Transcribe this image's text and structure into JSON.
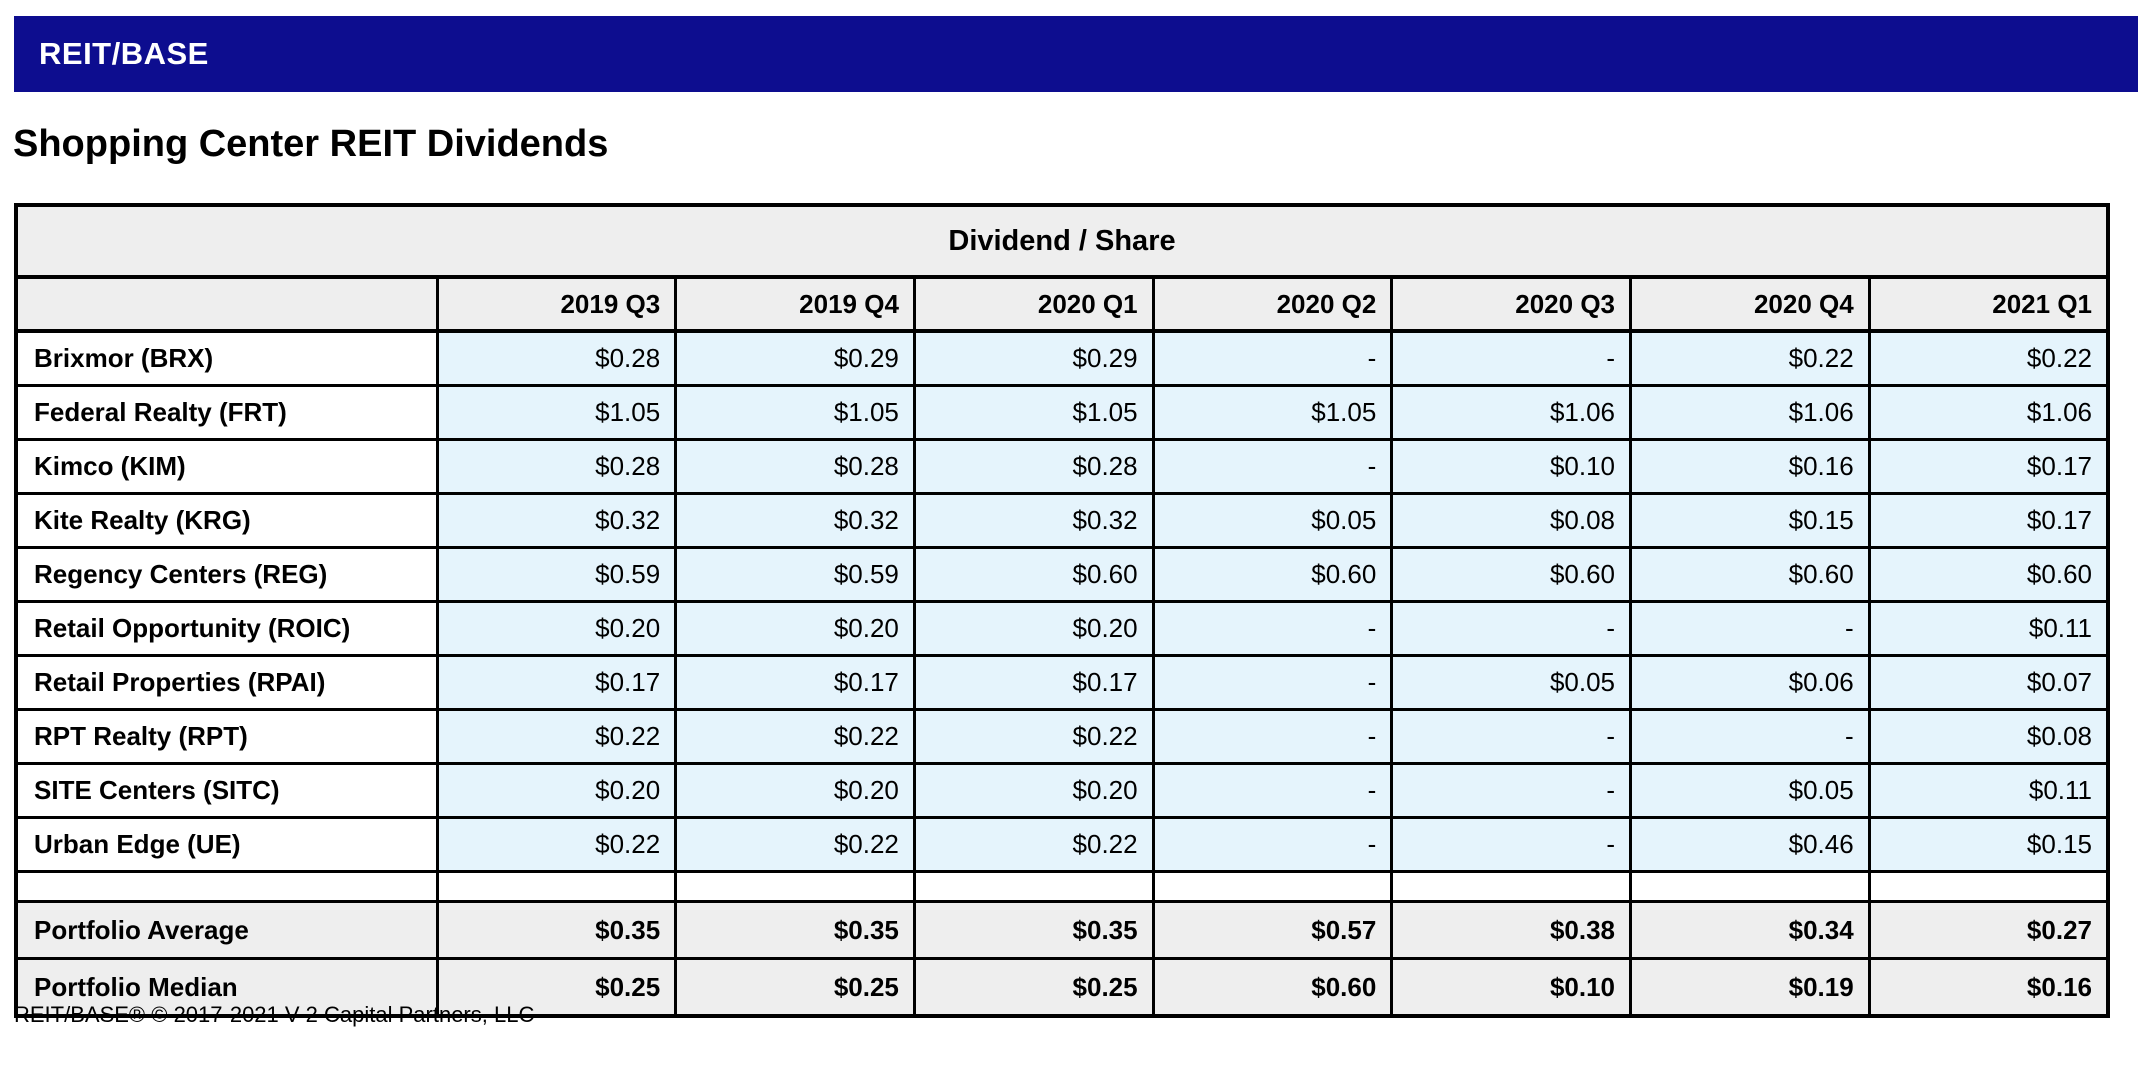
{
  "app": {
    "brand": "REIT/BASE"
  },
  "page": {
    "title": "Shopping Center REIT Dividends",
    "footer": "REIT/BASE® © 2017-2021 V-2 Capital Partners, LLC"
  },
  "colors": {
    "banner_bg": "#0d0d8f",
    "banner_text": "#ffffff",
    "header_bg": "#eeeeee",
    "value_cell_bg": "#e5f4fc",
    "summary_bg": "#eeeeee",
    "border": "#000000"
  },
  "table": {
    "title": "Dividend / Share",
    "columns": [
      "2019 Q3",
      "2019 Q4",
      "2020 Q1",
      "2020 Q2",
      "2020 Q3",
      "2020 Q4",
      "2021 Q1"
    ],
    "rows": [
      {
        "label": "Brixmor (BRX)",
        "values": [
          "$0.28",
          "$0.29",
          "$0.29",
          "-",
          "-",
          "$0.22",
          "$0.22"
        ]
      },
      {
        "label": "Federal Realty (FRT)",
        "values": [
          "$1.05",
          "$1.05",
          "$1.05",
          "$1.05",
          "$1.06",
          "$1.06",
          "$1.06"
        ]
      },
      {
        "label": "Kimco (KIM)",
        "values": [
          "$0.28",
          "$0.28",
          "$0.28",
          "-",
          "$0.10",
          "$0.16",
          "$0.17"
        ]
      },
      {
        "label": "Kite Realty (KRG)",
        "values": [
          "$0.32",
          "$0.32",
          "$0.32",
          "$0.05",
          "$0.08",
          "$0.15",
          "$0.17"
        ]
      },
      {
        "label": "Regency Centers (REG)",
        "values": [
          "$0.59",
          "$0.59",
          "$0.60",
          "$0.60",
          "$0.60",
          "$0.60",
          "$0.60"
        ]
      },
      {
        "label": "Retail Opportunity (ROIC)",
        "values": [
          "$0.20",
          "$0.20",
          "$0.20",
          "-",
          "-",
          "-",
          "$0.11"
        ]
      },
      {
        "label": "Retail Properties (RPAI)",
        "values": [
          "$0.17",
          "$0.17",
          "$0.17",
          "-",
          "$0.05",
          "$0.06",
          "$0.07"
        ]
      },
      {
        "label": "RPT Realty (RPT)",
        "values": [
          "$0.22",
          "$0.22",
          "$0.22",
          "-",
          "-",
          "-",
          "$0.08"
        ]
      },
      {
        "label": "SITE Centers (SITC)",
        "values": [
          "$0.20",
          "$0.20",
          "$0.20",
          "-",
          "-",
          "$0.05",
          "$0.11"
        ]
      },
      {
        "label": "Urban Edge (UE)",
        "values": [
          "$0.22",
          "$0.22",
          "$0.22",
          "-",
          "-",
          "$0.46",
          "$0.15"
        ]
      }
    ],
    "summary_rows": [
      {
        "label": "Portfolio Average",
        "values": [
          "$0.35",
          "$0.35",
          "$0.35",
          "$0.57",
          "$0.38",
          "$0.34",
          "$0.27"
        ]
      },
      {
        "label": "Portfolio Median",
        "values": [
          "$0.25",
          "$0.25",
          "$0.25",
          "$0.60",
          "$0.10",
          "$0.19",
          "$0.16"
        ]
      }
    ]
  }
}
